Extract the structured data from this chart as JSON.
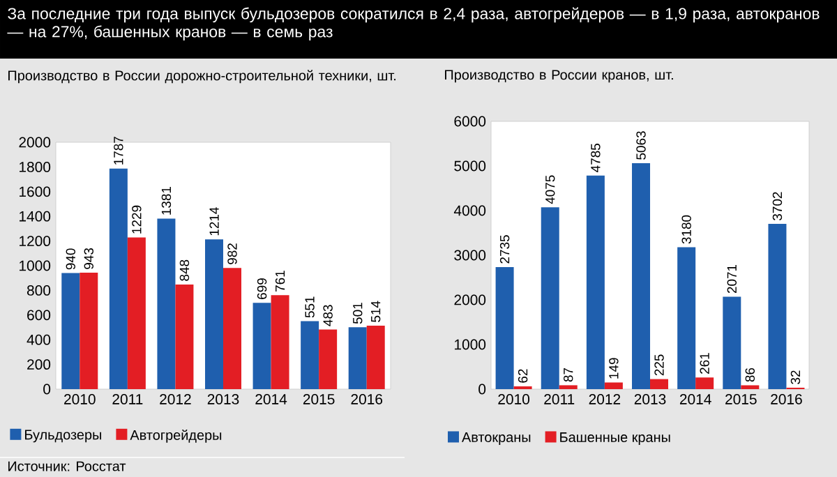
{
  "chart_data": [
    {
      "type": "bar",
      "title": "За последние три года выпуск бульдозеров сократился в 2,4 раза, автогрейдеров — в 1,9 раза, автокранов — на 27%, башенных кранов — в семь раз",
      "subtitle": "Производство в России дорожно-строительной техники, шт.",
      "categories": [
        "2010",
        "2011",
        "2012",
        "2013",
        "2014",
        "2015",
        "2016"
      ],
      "series": [
        {
          "name": "Бульдозеры",
          "color": "#1f5fae",
          "values": [
            940,
            1787,
            1381,
            1214,
            699,
            551,
            501
          ]
        },
        {
          "name": "Автогрейдеры",
          "color": "#e31e24",
          "values": [
            943,
            1229,
            848,
            982,
            761,
            483,
            514
          ]
        }
      ],
      "ylim": [
        0,
        2000
      ],
      "yticks": [
        0,
        200,
        400,
        600,
        800,
        1000,
        1200,
        1400,
        1600,
        1800,
        2000
      ],
      "data_labels": true,
      "legend": "bottom",
      "grid": false,
      "annotations": [
        "Источник: Росстат"
      ]
    },
    {
      "type": "bar",
      "title": "Производство в России кранов, шт.",
      "categories": [
        "2010",
        "2011",
        "2012",
        "2013",
        "2014",
        "2015",
        "2016"
      ],
      "series": [
        {
          "name": "Автокраны",
          "color": "#1f5fae",
          "values": [
            2735,
            4075,
            4785,
            5063,
            3180,
            2071,
            3702
          ]
        },
        {
          "name": "Башенные краны",
          "color": "#e31e24",
          "values": [
            62,
            87,
            149,
            225,
            261,
            86,
            32
          ]
        }
      ],
      "ylim": [
        0,
        6000
      ],
      "yticks": [
        0,
        1000,
        2000,
        3000,
        4000,
        5000,
        6000
      ],
      "data_labels": true,
      "legend": "bottom",
      "grid": false
    }
  ]
}
